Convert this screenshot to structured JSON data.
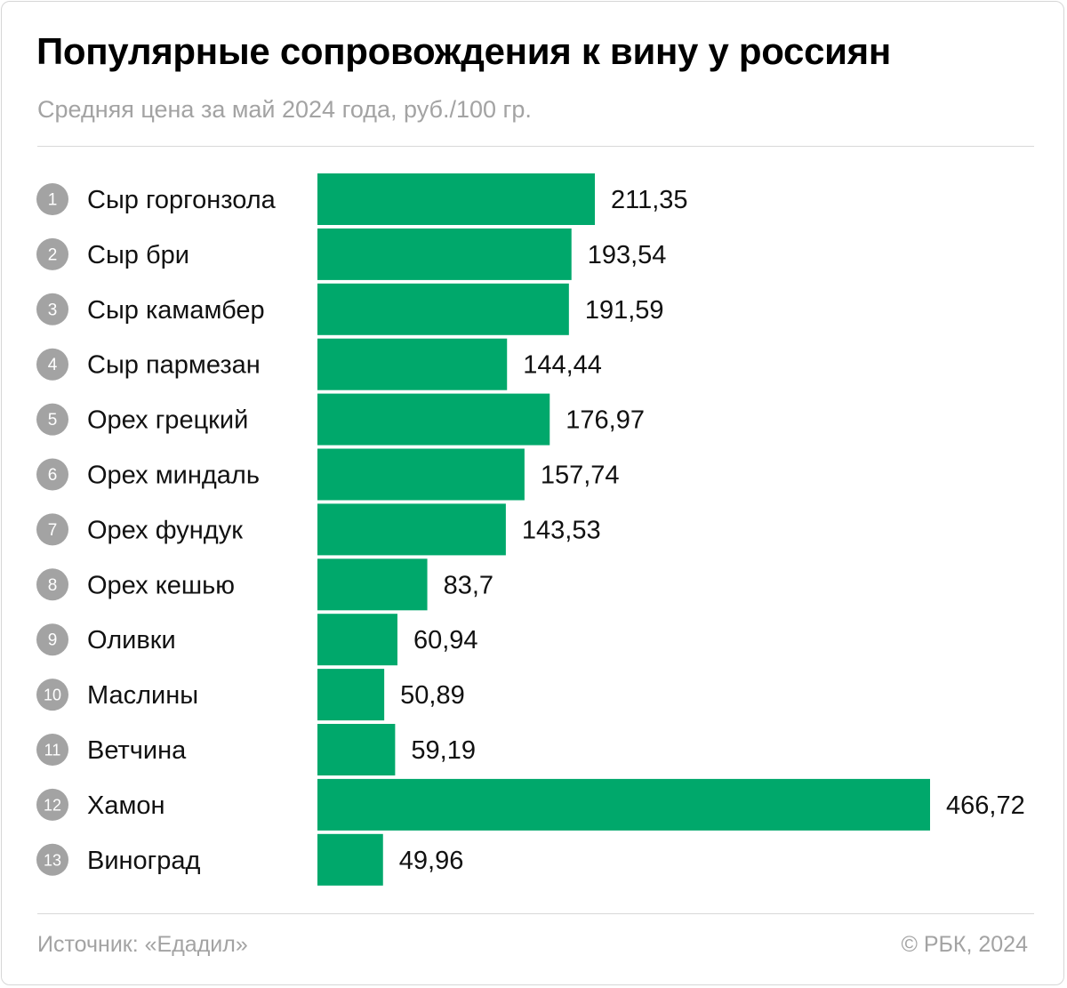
{
  "chart_data": {
    "type": "bar",
    "orientation": "horizontal",
    "title": "Популярные сопровождения к вину у россиян",
    "subtitle": "Средняя цена за май 2024 года, руб./100 гр.",
    "categories": [
      "Сыр горгонзола",
      "Сыр бри",
      "Сыр камамбер",
      "Сыр пармезан",
      "Орех грецкий",
      "Орех миндаль",
      "Орех фундук",
      "Орех кешью",
      "Оливки",
      "Маслины",
      "Ветчина",
      "Хамон",
      "Виноград"
    ],
    "ranks": [
      "1",
      "2",
      "3",
      "4",
      "5",
      "6",
      "7",
      "8",
      "9",
      "10",
      "11",
      "12",
      "13"
    ],
    "values": [
      211.35,
      193.54,
      191.59,
      144.44,
      176.97,
      157.74,
      143.53,
      83.7,
      60.94,
      50.89,
      59.19,
      466.72,
      49.96
    ],
    "value_labels": [
      "211,35",
      "193,54",
      "191,59",
      "144,44",
      "176,97",
      "157,74",
      "143,53",
      "83,7",
      "60,94",
      "50,89",
      "59,19",
      "466,72",
      "49,96"
    ],
    "xlim": [
      0,
      466.72
    ],
    "bar_color": "#00a86b",
    "rank_circle_color": "#a3a3a3"
  },
  "footer": {
    "source": "Источник: «Едадил»",
    "copyright": "© РБК, 2024"
  }
}
